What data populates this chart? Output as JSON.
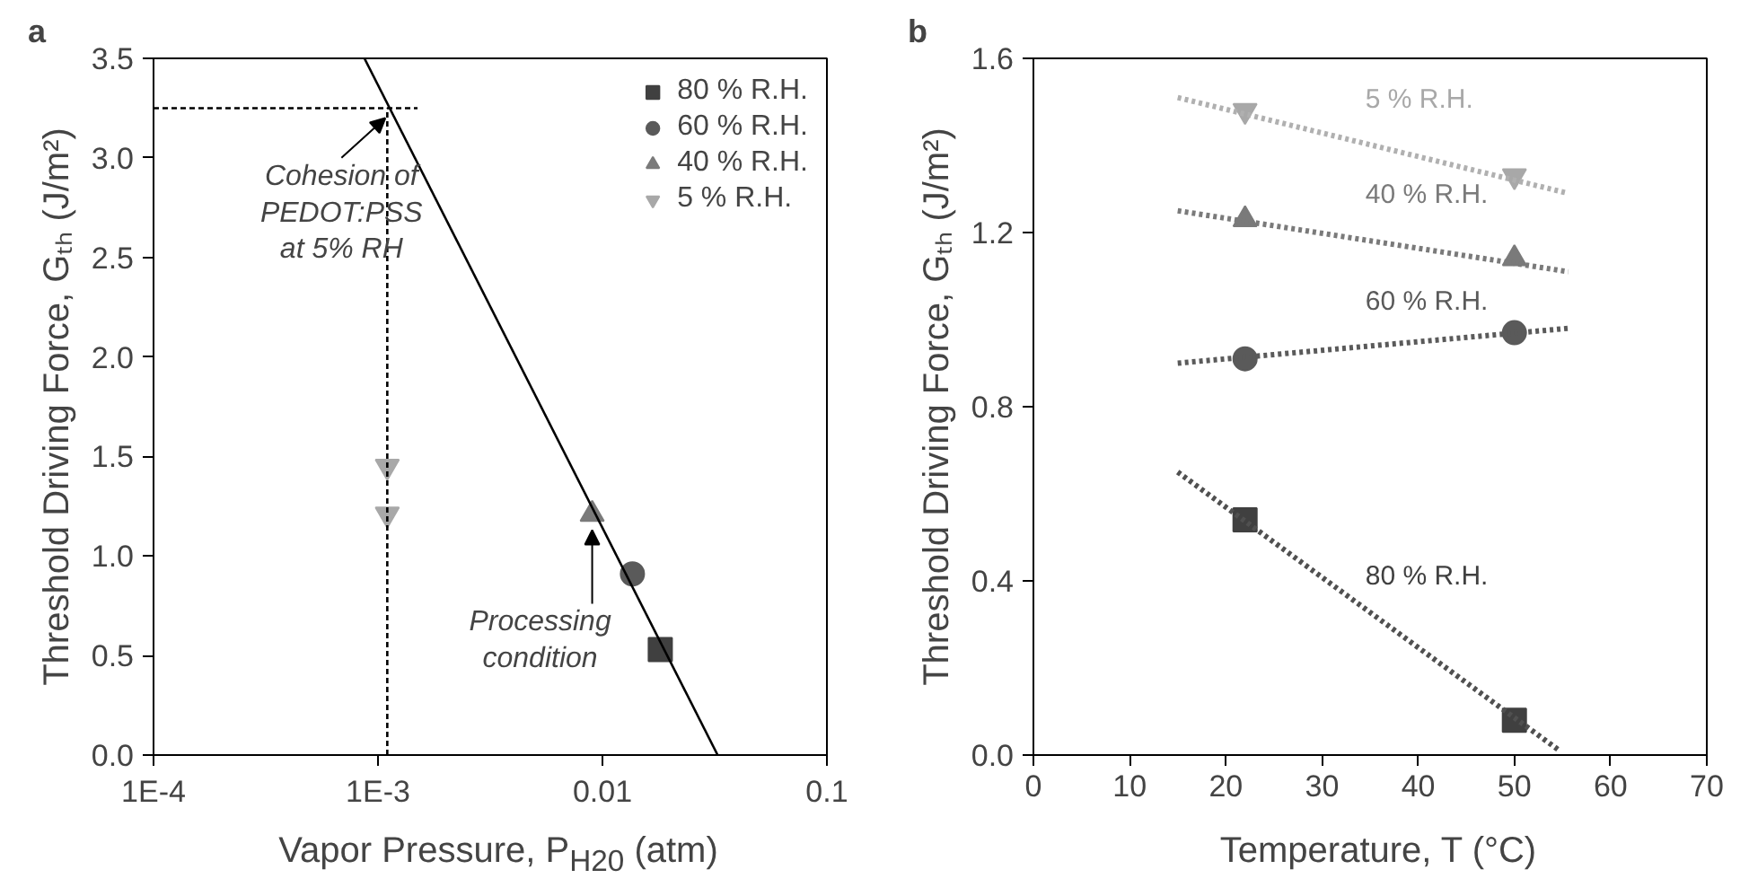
{
  "chart_data": [
    {
      "type": "scatter",
      "title": "a",
      "xlabel": "Vapor Pressure, P$_{H20}$ (atm)",
      "ylabel": "Threshold Driving Force, Gₜₕ (J/m²)",
      "log": "x",
      "xlim": [
        0.0001,
        0.1
      ],
      "xticks": [
        {
          "value": 0.0001,
          "label": "1E-4"
        },
        {
          "value": 0.001,
          "label": "1E-3"
        },
        0.01,
        0.1
      ],
      "ylim": [
        0,
        3.5
      ],
      "yticks": [
        {
          "value": 0,
          "label": "0.0"
        },
        0.5,
        {
          "value": 1,
          "label": "1.0"
        },
        1.5,
        {
          "value": 2,
          "label": "2.0"
        },
        2.5,
        {
          "value": 3,
          "label": "3.0"
        },
        3.5
      ],
      "legend": "top right",
      "series": [
        {
          "name": "80 % R.H.",
          "color": "#404040",
          "marker": "square",
          "x": [
            0.0181
          ],
          "values": [
            0.53
          ]
        },
        {
          "name": "60 % R.H.",
          "color": "#5a5a5a",
          "marker": "circle",
          "x": [
            0.0136
          ],
          "values": [
            0.91
          ]
        },
        {
          "name": "40 % R.H.",
          "color": "#7a7a7a",
          "marker": "triangle",
          "x": [
            0.009
          ],
          "values": [
            1.21
          ]
        },
        {
          "name": "5 % R.H.",
          "color": "#a8a8a8",
          "x": [
            0.0011,
            0.0011
          ],
          "values": [
            1.45,
            1.21
          ]
        },
        {
          "type": "line",
          "color": "#000000",
          "line_style": "solid",
          "x": [
            0.00087,
            0.0326
          ],
          "values": [
            3.5,
            0
          ]
        },
        {
          "type": "line",
          "color": "#000000",
          "line_style": "dashed",
          "x": [
            0.0011,
            0.0011
          ],
          "values": [
            0,
            3.25
          ]
        },
        {
          "type": "line",
          "color": "#000000",
          "line_style": "dashed",
          "x": [
            0.0001,
            0.0015
          ],
          "values": [
            3.25,
            3.25
          ]
        }
      ],
      "annotations": [
        {
          "text": "Cohesion of\nPEDOT:PSS\nat 5% RH",
          "x": 0.0011,
          "y": 3.25
        },
        {
          "text": "Processing\ncondition",
          "x": 0.009,
          "y": 1.21
        }
      ]
    },
    {
      "type": "scatter",
      "title": "b",
      "xlabel": "Temperature, T (°C)",
      "ylabel": "Threshold Driving Force, Gₜₕ (J/m²)",
      "xlim": [
        0,
        70
      ],
      "xticks": [
        0,
        10,
        20,
        30,
        40,
        50,
        60,
        70
      ],
      "ylim": [
        0,
        1.6
      ],
      "yticks": [
        {
          "value": 0,
          "label": "0.0"
        },
        0.4,
        0.8,
        1.2,
        1.6
      ],
      "series": [
        {
          "name": "80 % R.H.",
          "color": "#404040",
          "marker": "square",
          "x": [
            22,
            50
          ],
          "values": [
            0.54,
            0.08
          ]
        },
        {
          "name": "60 % R.H.",
          "color": "#5a5a5a",
          "marker": "circle",
          "x": [
            22,
            50
          ],
          "values": [
            0.91,
            0.97
          ]
        },
        {
          "name": "40 % R.H.",
          "color": "#7a7a7a",
          "marker": "triangle",
          "x": [
            22,
            50
          ],
          "values": [
            1.23,
            1.14
          ]
        },
        {
          "name": "5 % R.H.",
          "color": "#a8a8a8",
          "x": [
            22,
            50
          ],
          "values": [
            1.48,
            1.33
          ]
        },
        {
          "type": "line",
          "color": "#505050",
          "line_style": "dotted",
          "x": [
            15,
            54.7
          ],
          "values": [
            0.65,
            0.01
          ]
        },
        {
          "type": "line",
          "color": "#5a5a5a",
          "line_style": "dotted",
          "x": [
            15,
            55.6
          ],
          "values": [
            0.9,
            0.98
          ]
        },
        {
          "type": "line",
          "color": "#7a7a7a",
          "line_style": "dotted",
          "x": [
            15,
            55.6
          ],
          "values": [
            1.25,
            1.11
          ]
        },
        {
          "type": "line",
          "color": "#b0b0b0",
          "line_style": "dotted",
          "x": [
            15,
            55.6
          ],
          "values": [
            1.51,
            1.29
          ]
        }
      ]
    }
  ]
}
